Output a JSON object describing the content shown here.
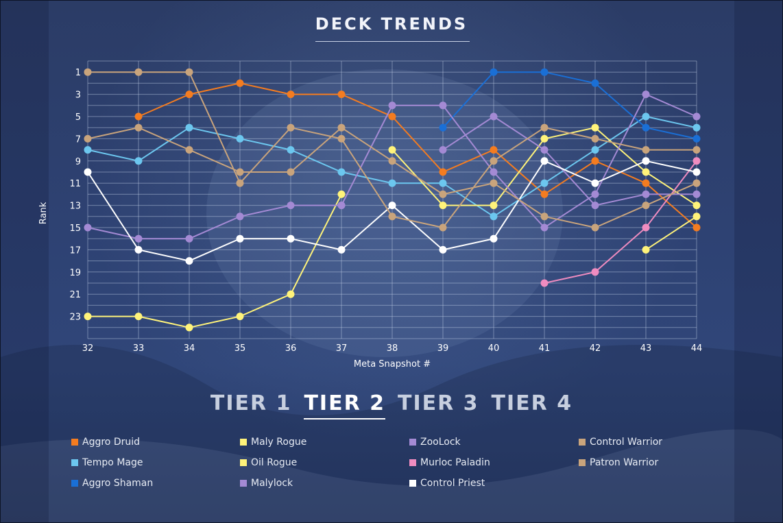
{
  "page": {
    "title": "DECK TRENDS"
  },
  "tiers": [
    {
      "label": "TIER 1",
      "active": false
    },
    {
      "label": "TIER 2",
      "active": true
    },
    {
      "label": "TIER 3",
      "active": false
    },
    {
      "label": "TIER 4",
      "active": false
    }
  ],
  "chart_data": {
    "type": "line",
    "title": "DECK TRENDS",
    "xlabel": "Meta Snapshot #",
    "ylabel": "Rank",
    "x": [
      32,
      33,
      34,
      35,
      36,
      37,
      38,
      39,
      40,
      41,
      42,
      43,
      44
    ],
    "xlim": [
      32,
      44
    ],
    "ylim": [
      25,
      0
    ],
    "y_inverted": true,
    "y_ticks": [
      1,
      3,
      5,
      7,
      9,
      11,
      13,
      15,
      17,
      19,
      21,
      23
    ],
    "grid": true,
    "legend_position": "bottom",
    "series": [
      {
        "name": "Aggro Druid",
        "color": "#f47c20",
        "values": [
          null,
          5,
          3,
          2,
          3,
          3,
          5,
          10,
          8,
          12,
          9,
          11,
          15
        ]
      },
      {
        "name": "Tempo Mage",
        "color": "#6cc7ef",
        "values": [
          8,
          9,
          6,
          7,
          8,
          10,
          11,
          11,
          14,
          11,
          8,
          5,
          6
        ]
      },
      {
        "name": "Aggro Shaman",
        "color": "#1a6fd6",
        "values": [
          null,
          null,
          null,
          null,
          null,
          null,
          null,
          6,
          1,
          1,
          2,
          6,
          7
        ]
      },
      {
        "name": "Maly Rogue",
        "color": "#fff37a",
        "values": [
          null,
          null,
          null,
          null,
          null,
          null,
          8,
          13,
          13,
          7,
          6,
          10,
          13
        ]
      },
      {
        "name": "Oil Rogue",
        "color": "#fff37a",
        "values": [
          23,
          23,
          24,
          23,
          21,
          12,
          null,
          null,
          null,
          null,
          null,
          17,
          14
        ]
      },
      {
        "name": "Malylock",
        "color": "#a48ad4",
        "values": [
          null,
          null,
          null,
          null,
          null,
          13,
          4,
          4,
          10,
          15,
          12,
          3,
          5
        ]
      },
      {
        "name": "ZooLock",
        "color": "#a48ad4",
        "values": [
          15,
          16,
          16,
          14,
          13,
          13,
          null,
          8,
          5,
          8,
          13,
          12,
          12
        ]
      },
      {
        "name": "Murloc Paladin",
        "color": "#f08cc0",
        "values": [
          null,
          null,
          null,
          null,
          null,
          null,
          null,
          null,
          null,
          20,
          19,
          15,
          9
        ]
      },
      {
        "name": "Control Priest",
        "color": "#ffffff",
        "values": [
          10,
          17,
          18,
          16,
          16,
          17,
          13,
          17,
          16,
          9,
          11,
          9,
          10
        ]
      },
      {
        "name": "Control Warrior",
        "color": "#c9a47c",
        "values": [
          1,
          1,
          1,
          11,
          6,
          7,
          14,
          15,
          9,
          6,
          7,
          8,
          8
        ]
      },
      {
        "name": "Patron Warrior",
        "color": "#c9a47c",
        "values": [
          7,
          6,
          8,
          10,
          10,
          6,
          9,
          12,
          11,
          14,
          15,
          13,
          11
        ]
      }
    ]
  },
  "legend": [
    {
      "label": "Aggro Druid",
      "color": "#f47c20"
    },
    {
      "label": "Tempo Mage",
      "color": "#6cc7ef"
    },
    {
      "label": "Aggro Shaman",
      "color": "#1a6fd6"
    },
    {
      "label": "Maly Rogue",
      "color": "#fff37a"
    },
    {
      "label": "Oil Rogue",
      "color": "#fff37a"
    },
    {
      "label": "Malylock",
      "color": "#a48ad4"
    },
    {
      "label": "ZooLock",
      "color": "#a48ad4"
    },
    {
      "label": "Murloc Paladin",
      "color": "#f08cc0"
    },
    {
      "label": "Control Priest",
      "color": "#ffffff"
    },
    {
      "label": "Control Warrior",
      "color": "#c9a47c"
    },
    {
      "label": "Patron Warrior",
      "color": "#c9a47c"
    }
  ]
}
